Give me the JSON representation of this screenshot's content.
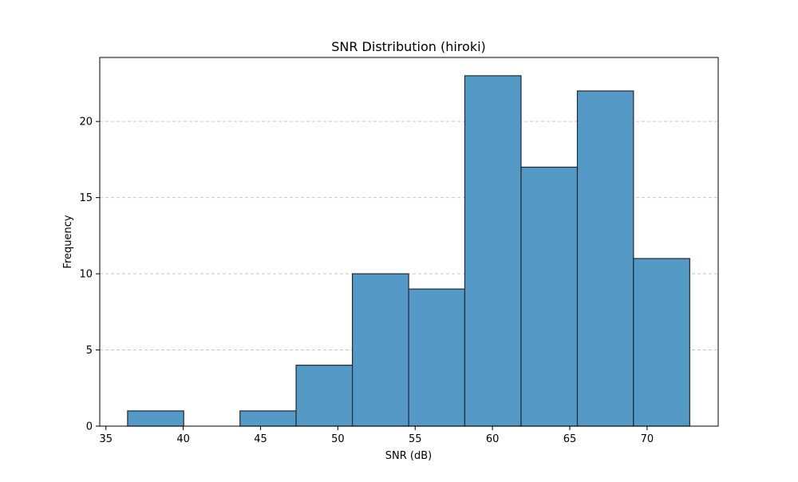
{
  "chart_data": {
    "type": "bar",
    "title": "SNR Distribution (hiroki)",
    "xlabel": "SNR (dB)",
    "ylabel": "Frequency",
    "xlim": [
      34.6,
      74.6
    ],
    "ylim": [
      0,
      24.2
    ],
    "xticks": [
      35,
      40,
      45,
      50,
      55,
      60,
      65,
      70
    ],
    "yticks": [
      0,
      5,
      10,
      15,
      20
    ],
    "grid": {
      "axis": "y",
      "style": "dashed"
    },
    "legend": "none",
    "bin_edges": [
      36.4,
      40.03,
      43.67,
      47.3,
      50.94,
      54.58,
      58.21,
      61.85,
      65.49,
      69.12,
      72.76
    ],
    "values": [
      1,
      0,
      1,
      4,
      10,
      9,
      23,
      17,
      22,
      11
    ],
    "colors": {
      "bar_fill": "#5599c7",
      "bar_edge": "#1f2a33",
      "grid": "#c8c8c8",
      "axis": "#000000"
    }
  }
}
